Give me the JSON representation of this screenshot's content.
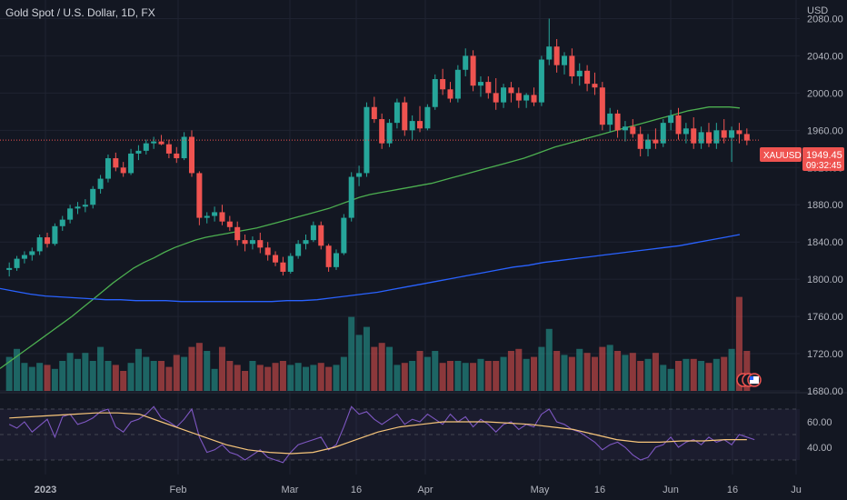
{
  "chart_data": {
    "type": "candlestick",
    "title": "Gold Spot / U.S. Dollar, 1D, FX",
    "currency_label": "USD",
    "symbol_badge": "XAUUSD",
    "last_price": "1949.45",
    "countdown": "09:32:45",
    "ylim": [
      1680,
      2100
    ],
    "y_ticks": [
      "2080.00",
      "2040.00",
      "2000.00",
      "1960.00",
      "1920.00",
      "1880.00",
      "1840.00",
      "1800.00",
      "1760.00",
      "1720.00",
      "1680.00"
    ],
    "x_ticks": [
      "2023",
      "Feb",
      "Mar",
      "16",
      "Apr",
      "May",
      "16",
      "Jun",
      "16",
      "Ju"
    ],
    "rsi_ticks": [
      "60.00",
      "40.00"
    ],
    "candles": [
      [
        1810,
        1818,
        1803,
        1812
      ],
      [
        1812,
        1825,
        1809,
        1822
      ],
      [
        1822,
        1830,
        1817,
        1826
      ],
      [
        1826,
        1834,
        1820,
        1830
      ],
      [
        1830,
        1848,
        1826,
        1845
      ],
      [
        1845,
        1850,
        1834,
        1838
      ],
      [
        1838,
        1860,
        1836,
        1857
      ],
      [
        1857,
        1868,
        1852,
        1864
      ],
      [
        1864,
        1880,
        1860,
        1876
      ],
      [
        1876,
        1883,
        1870,
        1878
      ],
      [
        1878,
        1886,
        1872,
        1880
      ],
      [
        1880,
        1900,
        1876,
        1897
      ],
      [
        1897,
        1912,
        1892,
        1908
      ],
      [
        1908,
        1934,
        1904,
        1930
      ],
      [
        1930,
        1936,
        1916,
        1920
      ],
      [
        1920,
        1926,
        1910,
        1914
      ],
      [
        1914,
        1940,
        1912,
        1935
      ],
      [
        1935,
        1944,
        1928,
        1938
      ],
      [
        1938,
        1950,
        1934,
        1946
      ],
      [
        1946,
        1953,
        1940,
        1948
      ],
      [
        1948,
        1955,
        1944,
        1945
      ],
      [
        1945,
        1950,
        1930,
        1935
      ],
      [
        1935,
        1942,
        1925,
        1930
      ],
      [
        1930,
        1958,
        1928,
        1953
      ],
      [
        1953,
        1960,
        1910,
        1914
      ],
      [
        1914,
        1916,
        1858,
        1866
      ],
      [
        1866,
        1872,
        1860,
        1868
      ],
      [
        1868,
        1878,
        1862,
        1872
      ],
      [
        1872,
        1880,
        1858,
        1862
      ],
      [
        1862,
        1868,
        1852,
        1856
      ],
      [
        1856,
        1862,
        1836,
        1842
      ],
      [
        1842,
        1848,
        1830,
        1838
      ],
      [
        1838,
        1846,
        1832,
        1842
      ],
      [
        1842,
        1850,
        1828,
        1834
      ],
      [
        1834,
        1840,
        1820,
        1826
      ],
      [
        1826,
        1830,
        1814,
        1818
      ],
      [
        1818,
        1824,
        1804,
        1808
      ],
      [
        1808,
        1828,
        1806,
        1825
      ],
      [
        1825,
        1842,
        1822,
        1838
      ],
      [
        1838,
        1848,
        1832,
        1842
      ],
      [
        1842,
        1862,
        1840,
        1858
      ],
      [
        1858,
        1862,
        1832,
        1836
      ],
      [
        1836,
        1838,
        1808,
        1813
      ],
      [
        1813,
        1832,
        1810,
        1828
      ],
      [
        1828,
        1870,
        1826,
        1866
      ],
      [
        1866,
        1915,
        1862,
        1910
      ],
      [
        1910,
        1922,
        1900,
        1914
      ],
      [
        1914,
        1990,
        1910,
        1985
      ],
      [
        1985,
        1996,
        1968,
        1972
      ],
      [
        1972,
        1978,
        1940,
        1946
      ],
      [
        1946,
        1972,
        1942,
        1968
      ],
      [
        1968,
        1994,
        1962,
        1990
      ],
      [
        1990,
        1996,
        1954,
        1960
      ],
      [
        1960,
        1976,
        1950,
        1970
      ],
      [
        1970,
        1986,
        1958,
        1962
      ],
      [
        1962,
        1988,
        1960,
        1985
      ],
      [
        1985,
        2020,
        1982,
        2015
      ],
      [
        2015,
        2026,
        1998,
        2004
      ],
      [
        2004,
        2012,
        1990,
        1994
      ],
      [
        1994,
        2030,
        1990,
        2025
      ],
      [
        2025,
        2048,
        2018,
        2040
      ],
      [
        2040,
        2046,
        2002,
        2008
      ],
      [
        2008,
        2018,
        1996,
        2012
      ],
      [
        2012,
        2018,
        1994,
        2000
      ],
      [
        2000,
        2016,
        1982,
        1990
      ],
      [
        1990,
        2010,
        1984,
        2006
      ],
      [
        2006,
        2012,
        1990,
        2000
      ],
      [
        2000,
        2006,
        1984,
        1992
      ],
      [
        1992,
        2000,
        1984,
        1998
      ],
      [
        1998,
        2006,
        1986,
        1990
      ],
      [
        1990,
        2040,
        1986,
        2036
      ],
      [
        2036,
        2080,
        2030,
        2050
      ],
      [
        2050,
        2058,
        2022,
        2030
      ],
      [
        2030,
        2044,
        2020,
        2040
      ],
      [
        2040,
        2048,
        2010,
        2018
      ],
      [
        2018,
        2032,
        2008,
        2024
      ],
      [
        2024,
        2030,
        2002,
        2010
      ],
      [
        2010,
        2022,
        1998,
        2006
      ],
      [
        2006,
        2012,
        1960,
        1966
      ],
      [
        1966,
        1984,
        1958,
        1978
      ],
      [
        1978,
        1982,
        1952,
        1960
      ],
      [
        1960,
        1970,
        1948,
        1964
      ],
      [
        1964,
        1972,
        1952,
        1956
      ],
      [
        1956,
        1964,
        1932,
        1940
      ],
      [
        1940,
        1956,
        1932,
        1950
      ],
      [
        1950,
        1962,
        1940,
        1946
      ],
      [
        1946,
        1972,
        1942,
        1968
      ],
      [
        1968,
        1982,
        1960,
        1976
      ],
      [
        1976,
        1984,
        1950,
        1956
      ],
      [
        1956,
        1968,
        1946,
        1962
      ],
      [
        1962,
        1974,
        1940,
        1946
      ],
      [
        1946,
        1964,
        1940,
        1958
      ],
      [
        1958,
        1968,
        1942,
        1946
      ],
      [
        1946,
        1968,
        1940,
        1960
      ],
      [
        1960,
        1972,
        1946,
        1952
      ],
      [
        1952,
        1964,
        1926,
        1960
      ],
      [
        1960,
        1968,
        1946,
        1956
      ],
      [
        1956,
        1962,
        1944,
        1949
      ]
    ],
    "volumes": [
      34,
      42,
      28,
      24,
      28,
      26,
      22,
      30,
      38,
      32,
      38,
      30,
      44,
      30,
      26,
      20,
      28,
      42,
      34,
      30,
      30,
      24,
      36,
      34,
      44,
      48,
      40,
      22,
      44,
      30,
      26,
      20,
      30,
      26,
      24,
      28,
      30,
      26,
      28,
      24,
      26,
      28,
      24,
      26,
      34,
      74,
      56,
      64,
      44,
      48,
      44,
      26,
      28,
      30,
      40,
      34,
      40,
      28,
      30,
      30,
      28,
      28,
      32,
      30,
      30,
      34,
      40,
      42,
      32,
      34,
      44,
      62,
      40,
      36,
      34,
      42,
      38,
      34,
      44,
      46,
      40,
      36,
      38,
      30,
      32,
      38,
      26,
      22,
      30,
      32,
      32,
      30,
      28,
      32,
      34,
      42,
      94,
      40,
      20
    ],
    "sma_green": [
      1704,
      1712,
      1720,
      1728,
      1736,
      1744,
      1752,
      1760,
      1769,
      1778,
      1787,
      1796,
      1804,
      1812,
      1818,
      1823,
      1829,
      1834,
      1838,
      1842,
      1845,
      1847,
      1849,
      1851,
      1853,
      1855,
      1858,
      1861,
      1864,
      1867,
      1870,
      1873,
      1876,
      1880,
      1884,
      1888,
      1891,
      1893,
      1895,
      1897,
      1899,
      1901,
      1903,
      1906,
      1909,
      1912,
      1915,
      1918,
      1921,
      1924,
      1927,
      1930,
      1934,
      1938,
      1942,
      1945,
      1948,
      1951,
      1954,
      1957,
      1960,
      1963,
      1966,
      1969,
      1972,
      1975,
      1978,
      1981,
      1983,
      1985,
      1985,
      1985,
      1984
    ],
    "sma_green_start": 0,
    "sma_blue": [
      1790,
      1787,
      1784,
      1782,
      1781,
      1780,
      1779,
      1778,
      1778,
      1777,
      1777,
      1777,
      1776,
      1776,
      1776,
      1776,
      1776,
      1776,
      1776,
      1777,
      1777,
      1778,
      1780,
      1782,
      1784,
      1786,
      1789,
      1792,
      1795,
      1798,
      1801,
      1804,
      1807,
      1810,
      1813,
      1815,
      1818,
      1820,
      1822,
      1824,
      1826,
      1828,
      1830,
      1832,
      1834,
      1836,
      1839,
      1842,
      1845,
      1848
    ],
    "rsi": [
      58,
      55,
      60,
      52,
      57,
      62,
      48,
      64,
      66,
      58,
      60,
      63,
      68,
      70,
      56,
      52,
      60,
      62,
      66,
      72,
      63,
      60,
      56,
      62,
      70,
      48,
      36,
      38,
      42,
      36,
      34,
      30,
      34,
      38,
      32,
      30,
      28,
      36,
      42,
      44,
      46,
      48,
      38,
      42,
      56,
      72,
      66,
      68,
      62,
      58,
      62,
      66,
      58,
      62,
      60,
      66,
      62,
      58,
      66,
      60,
      64,
      56,
      62,
      58,
      52,
      58,
      60,
      54,
      58,
      56,
      66,
      70,
      60,
      58,
      54,
      52,
      48,
      44,
      38,
      42,
      44,
      40,
      34,
      30,
      32,
      40,
      42,
      48,
      40,
      44,
      46,
      42,
      48,
      44,
      46,
      42,
      50,
      48,
      46
    ],
    "rsi_ma": [
      63,
      64,
      65,
      66,
      67,
      67,
      66,
      60,
      54,
      48,
      42,
      38,
      36,
      35,
      36,
      40,
      46,
      52,
      56,
      58,
      60,
      60,
      60,
      59,
      58,
      56,
      54,
      50,
      46,
      44,
      44,
      45,
      45,
      46,
      46
    ],
    "volume_scale_max": 100,
    "colors": {
      "up": "#26a69a",
      "down": "#ef5350",
      "sma_green": "#4caf50",
      "sma_blue": "#2962ff",
      "rsi": "#7e57c2",
      "rsi_ma": "#f7c57a",
      "grid": "#1f2331",
      "bg": "#131722"
    }
  }
}
